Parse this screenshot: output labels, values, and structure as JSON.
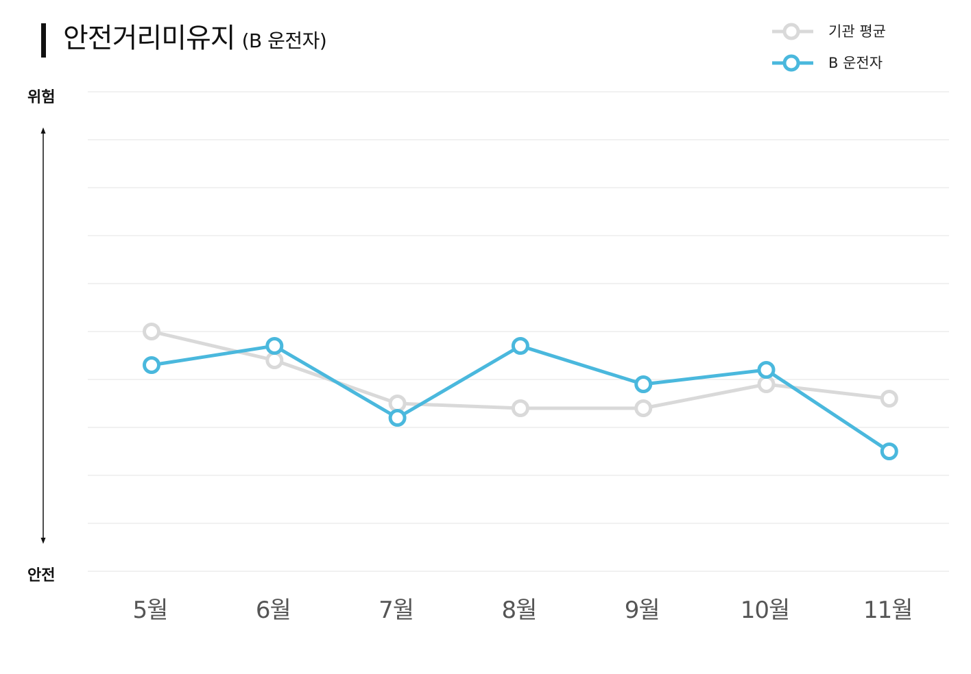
{
  "header": {
    "title": "안전거리미유지",
    "subtitle": "(B 운전자)"
  },
  "legend": {
    "items": [
      {
        "label": "기관 평균",
        "color": "#d9d9d9"
      },
      {
        "label": "B 운전자",
        "color": "#4ab8dd"
      }
    ]
  },
  "axis": {
    "top_label": "위험",
    "bottom_label": "안전"
  },
  "chart_data": {
    "type": "line",
    "title": "안전거리미유지",
    "subtitle": "(B 운전자)",
    "categories": [
      "5월",
      "6월",
      "7월",
      "8월",
      "9월",
      "10월",
      "11월"
    ],
    "ylim": [
      0,
      10
    ],
    "y_labels": {
      "top": "위험",
      "bottom": "안전"
    },
    "grid": true,
    "legend_position": "top-right",
    "series": [
      {
        "name": "기관 평균",
        "color": "#d9d9d9",
        "values": [
          5.0,
          4.4,
          3.5,
          3.4,
          3.4,
          3.9,
          3.6
        ]
      },
      {
        "name": "B 운전자",
        "color": "#4ab8dd",
        "values": [
          4.3,
          4.7,
          3.2,
          4.7,
          3.9,
          4.2,
          2.5
        ]
      }
    ]
  }
}
